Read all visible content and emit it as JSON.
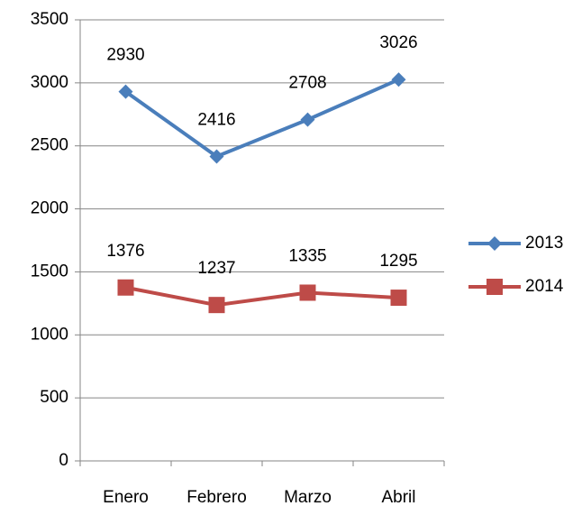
{
  "chart_data": {
    "type": "line",
    "categories": [
      "Enero",
      "Febrero",
      "Marzo",
      "Abril"
    ],
    "series": [
      {
        "name": "2013",
        "color": "#4a7ebb",
        "marker": "diamond",
        "values": [
          2930,
          2416,
          2708,
          3026
        ]
      },
      {
        "name": "2014",
        "color": "#be4b48",
        "marker": "square",
        "values": [
          1376,
          1237,
          1335,
          1295
        ]
      }
    ],
    "ylim": [
      0,
      3500
    ],
    "yticks": [
      0,
      500,
      1000,
      1500,
      2000,
      2500,
      3000,
      3500
    ],
    "grid": true,
    "legend": "right",
    "data_labels": true
  }
}
